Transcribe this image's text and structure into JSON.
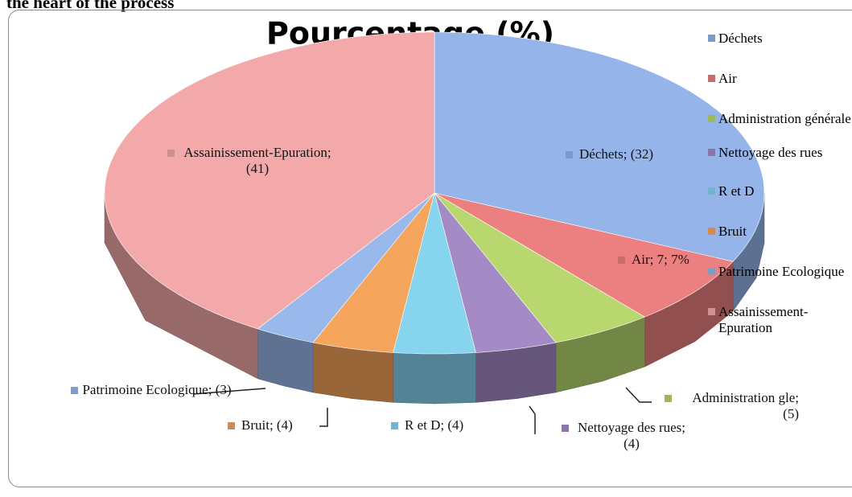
{
  "caption": "the heart of the process",
  "chart_data": {
    "type": "pie",
    "title": "Pourcentage (%)",
    "categories": [
      "Déchets",
      "Air",
      "Administration générale",
      "Nettoyage des rues",
      "R et D",
      "Bruit",
      "Patrimoine Ecologique",
      "Assainissement-Epuration"
    ],
    "values": [
      32,
      7,
      5,
      4,
      4,
      4,
      3,
      41
    ],
    "value_labels": [
      "Déchets; (32)",
      "Air; 7; 7%",
      "Administration gle; (5)",
      "Nettoyage des rues; (4)",
      "R et D; (4)",
      "Bruit; (4)",
      "Patrimoine Ecologique; (3)",
      "Assainissement-Epuration; (41)"
    ],
    "colors": [
      "#94b4ea",
      "#ec7f7f",
      "#b8d86f",
      "#a48bc6",
      "#86d4ee",
      "#f5a55c",
      "#99b8ec",
      "#f3a9a9"
    ],
    "legend": "right"
  }
}
